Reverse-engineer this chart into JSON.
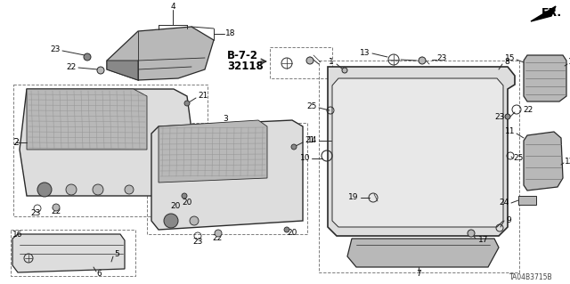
{
  "bg_color": "#ffffff",
  "diagram_code": "TA04B3715B",
  "line_color": "#2a2a2a",
  "text_color": "#000000",
  "font_size": 6.5,
  "bold_font_size": 8.5,
  "dashed_color": "#666666",
  "part_gray": "#b8b8b8",
  "dark_gray": "#888888",
  "light_gray": "#dddddd"
}
